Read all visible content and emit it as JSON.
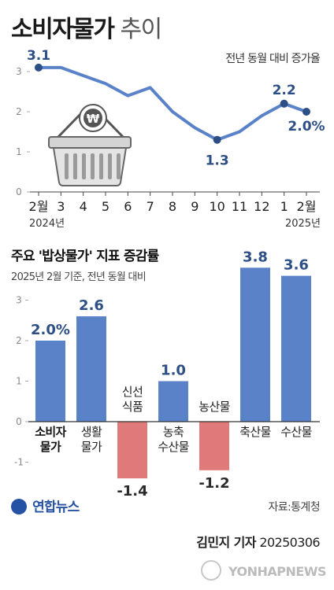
{
  "title_bold": "소비자물가",
  "title_light": "추이",
  "chart_data": [
    {
      "type": "line",
      "title": "소비자물가 추이",
      "note": "전년 동월 대비 증가율",
      "categories": [
        "2월",
        "3",
        "4",
        "5",
        "6",
        "7",
        "8",
        "9",
        "10",
        "11",
        "12",
        "1",
        "2월"
      ],
      "year_labels": [
        "2024년",
        "2025년"
      ],
      "values": [
        3.1,
        3.1,
        2.9,
        2.7,
        2.4,
        2.6,
        2.0,
        1.6,
        1.3,
        1.5,
        1.9,
        2.2,
        2.0
      ],
      "value_labels": [
        {
          "index": 0,
          "text": "3.1"
        },
        {
          "index": 8,
          "text": "1.3"
        },
        {
          "index": 11,
          "text": "2.2"
        },
        {
          "index": 12,
          "text": "2.0%"
        }
      ],
      "yticks": [
        "0",
        "1",
        "2",
        "3"
      ],
      "ylim": [
        0,
        3.3
      ],
      "color": "#5a82c8",
      "grid": false,
      "illustration": "shopping-basket-with-won-coin"
    },
    {
      "type": "bar",
      "title": "주요 '밥상물가' 지표 증감률",
      "subtitle": "2025년 2월 기준, 전년 동월 대비",
      "categories": [
        [
          "소비자",
          "물가"
        ],
        [
          "생활",
          "물가"
        ],
        [
          "신선",
          "식품"
        ],
        [
          "농축",
          "수산물"
        ],
        [
          "농산물"
        ],
        [
          "축산물"
        ],
        [
          "수산물"
        ]
      ],
      "values": [
        2.0,
        2.6,
        -1.4,
        1.0,
        -1.2,
        3.8,
        3.6
      ],
      "value_labels": [
        "2.0%",
        "2.6",
        "-1.4",
        "1.0",
        "-1.2",
        "3.8",
        "3.6"
      ],
      "yticks": [
        "-1",
        "0",
        "1",
        "2",
        "3"
      ],
      "ylim": [
        -1.8,
        4.0
      ],
      "positive_color": "#5a82c8",
      "negative_color": "#e07a7a",
      "highlight_index": 0
    }
  ],
  "footer": {
    "logo": "연합뉴스",
    "source": "자료:통계청",
    "reporter_name": "김민지 기자",
    "date": "20250306",
    "watermark": "YONHAPNEWS"
  }
}
